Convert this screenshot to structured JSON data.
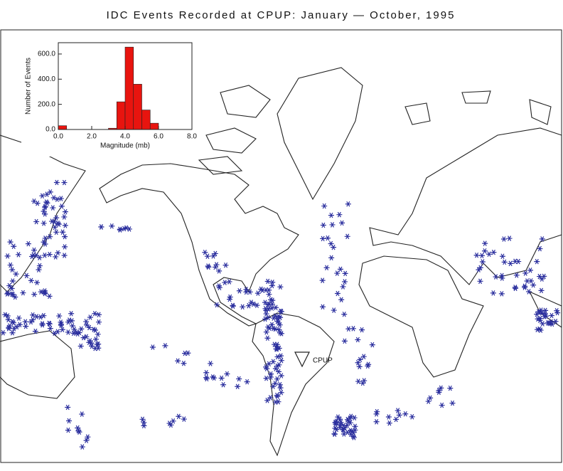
{
  "title": "IDC Events Recorded at CPUP: January — October, 1995",
  "station": {
    "label": "CPUP"
  },
  "chart_data": {
    "type": "histogram",
    "xlabel": "Magnitude (mb)",
    "ylabel": "Number of Events",
    "bins": [
      0,
      0.5,
      1,
      1.5,
      2,
      2.5,
      3,
      3.5,
      4,
      4.5,
      5,
      5.5,
      6,
      6.5,
      7,
      7.5,
      8
    ],
    "counts": [
      30,
      0,
      0,
      0,
      0,
      0,
      10,
      220,
      655,
      360,
      155,
      50,
      0,
      0,
      0,
      0
    ],
    "color": "#e8140f",
    "xlim": [
      0,
      8
    ],
    "ylim": [
      0,
      690
    ],
    "xticks": [
      {
        "value": 0,
        "label": "0.0"
      },
      {
        "value": 2,
        "label": "2.0"
      },
      {
        "value": 4,
        "label": "4.0"
      },
      {
        "value": 6,
        "label": "6.0"
      },
      {
        "value": 8,
        "label": "8.0"
      }
    ],
    "yticks": [
      {
        "value": 0,
        "label": "0.0"
      },
      {
        "value": 200,
        "label": "200.0"
      },
      {
        "value": 400,
        "label": "400.0"
      },
      {
        "value": 600,
        "label": "600.0"
      }
    ]
  }
}
